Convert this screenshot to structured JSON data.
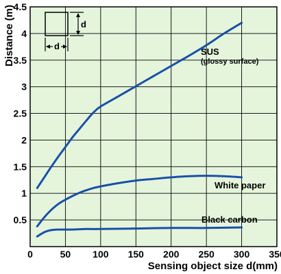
{
  "chart_data": {
    "type": "line",
    "xlabel": "Sensing object size d(mm)",
    "ylabel": "Distance (m)",
    "xlim": [
      0,
      350
    ],
    "ylim": [
      0,
      4.5
    ],
    "xticks": [
      0,
      50,
      100,
      150,
      200,
      250,
      300,
      350
    ],
    "yticks": [
      0.5,
      1,
      1.5,
      2,
      2.5,
      3,
      3.5,
      4,
      4.5
    ],
    "xtick_labels": [
      "0",
      "50",
      "100",
      "150",
      "200",
      "250",
      "300",
      "350"
    ],
    "ytick_labels": [
      "0.5",
      "1",
      "1.5",
      "2",
      "2.5",
      "3",
      "3.5",
      "4",
      "4.5"
    ],
    "grid": true,
    "background": "#e4f5dc",
    "line_color": "#1a4fa8",
    "series": [
      {
        "name": "SUS",
        "sublabel": "(glossy surface)",
        "x": [
          10,
          20,
          30,
          40,
          50,
          60,
          70,
          80,
          90,
          100,
          125,
          150,
          175,
          200,
          225,
          250,
          275,
          300
        ],
        "y": [
          1.1,
          1.3,
          1.5,
          1.69,
          1.87,
          2.05,
          2.21,
          2.37,
          2.52,
          2.63,
          2.82,
          3.01,
          3.2,
          3.39,
          3.58,
          3.78,
          4.0,
          4.2
        ]
      },
      {
        "name": "White paper",
        "x": [
          10,
          20,
          30,
          40,
          50,
          60,
          70,
          80,
          90,
          100,
          125,
          150,
          175,
          200,
          225,
          250,
          275,
          300
        ],
        "y": [
          0.38,
          0.55,
          0.69,
          0.8,
          0.88,
          0.95,
          1.01,
          1.06,
          1.1,
          1.13,
          1.19,
          1.24,
          1.27,
          1.3,
          1.32,
          1.33,
          1.32,
          1.3
        ]
      },
      {
        "name": "Black carbon",
        "x": [
          10,
          20,
          30,
          40,
          60,
          80,
          100,
          150,
          200,
          250,
          300
        ],
        "y": [
          0.19,
          0.27,
          0.31,
          0.32,
          0.32,
          0.33,
          0.33,
          0.34,
          0.35,
          0.35,
          0.36
        ]
      }
    ],
    "inset_label_d": "d"
  }
}
